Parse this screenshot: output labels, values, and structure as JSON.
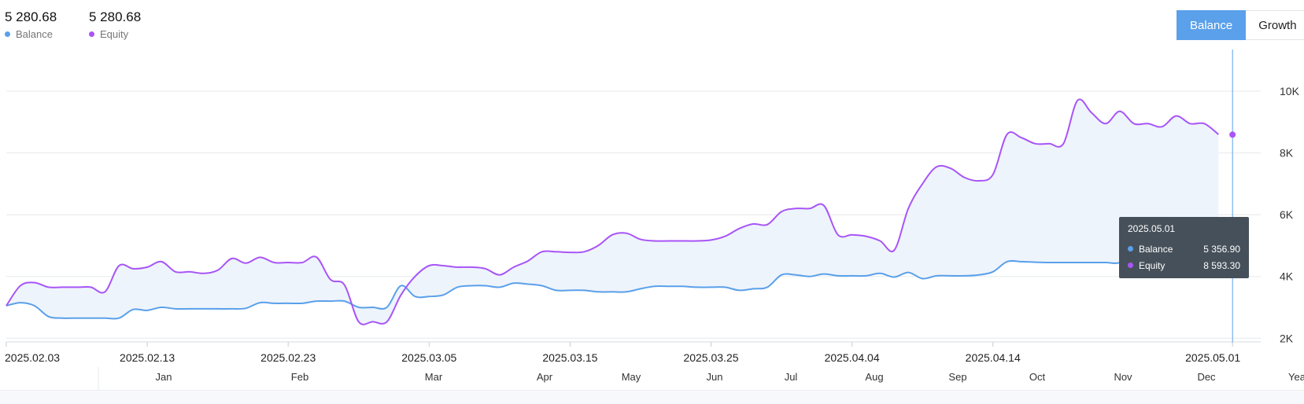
{
  "header": {
    "balance_value": "5 280.68",
    "balance_label": "Balance",
    "equity_value": "5 280.68",
    "equity_label": "Equity"
  },
  "toggle": {
    "balance_label": "Balance",
    "growth_label": "Growth"
  },
  "colors": {
    "balance": "#5aa0ea",
    "equity": "#a855f7",
    "fill": "#eef4fb",
    "tooltip_bg": "#46505a"
  },
  "tooltip": {
    "date": "2025.05.01",
    "balance_label": "Balance",
    "balance_value": "5 356.90",
    "equity_label": "Equity",
    "equity_value": "8 593.30"
  },
  "month_labels": [
    "Jan",
    "Feb",
    "Mar",
    "Apr",
    "May",
    "Jun",
    "Jul",
    "Aug",
    "Sep",
    "Oct",
    "Nov",
    "Dec",
    "Yea"
  ],
  "chart_data": {
    "type": "line",
    "x_start": "2025.02.03",
    "x_end": "2025.05.03",
    "x_ticks": [
      "2025.02.03",
      "2025.02.13",
      "2025.02.23",
      "2025.03.05",
      "2025.03.15",
      "2025.03.25",
      "2025.04.04",
      "2025.04.14",
      "2025.05.01"
    ],
    "y_ticks": [
      2000,
      4000,
      6000,
      8000,
      10000
    ],
    "y_tick_labels": [
      "2K",
      "4K",
      "6K",
      "8K",
      "10K"
    ],
    "ylim": [
      1930,
      11300
    ],
    "grid": true,
    "legend": "top-left",
    "series": [
      {
        "name": "Equity",
        "points": [
          [
            "2025.02.03",
            3050
          ],
          [
            "2025.02.04",
            3700
          ],
          [
            "2025.02.05",
            3800
          ],
          [
            "2025.02.06",
            3650
          ],
          [
            "2025.02.07",
            3650
          ],
          [
            "2025.02.08",
            3650
          ],
          [
            "2025.02.09",
            3650
          ],
          [
            "2025.02.10",
            3500
          ],
          [
            "2025.02.11",
            4350
          ],
          [
            "2025.02.12",
            4250
          ],
          [
            "2025.02.13",
            4300
          ],
          [
            "2025.02.14",
            4480
          ],
          [
            "2025.02.15",
            4150
          ],
          [
            "2025.02.16",
            4150
          ],
          [
            "2025.02.17",
            4100
          ],
          [
            "2025.02.18",
            4200
          ],
          [
            "2025.02.19",
            4580
          ],
          [
            "2025.02.20",
            4430
          ],
          [
            "2025.02.21",
            4620
          ],
          [
            "2025.02.22",
            4450
          ],
          [
            "2025.02.23",
            4450
          ],
          [
            "2025.02.24",
            4450
          ],
          [
            "2025.02.25",
            4630
          ],
          [
            "2025.02.26",
            3900
          ],
          [
            "2025.02.27",
            3720
          ],
          [
            "2025.02.28",
            2530
          ],
          [
            "2025.03.01",
            2530
          ],
          [
            "2025.03.02",
            2530
          ],
          [
            "2025.03.03",
            3400
          ],
          [
            "2025.03.04",
            4000
          ],
          [
            "2025.03.05",
            4350
          ],
          [
            "2025.03.06",
            4350
          ],
          [
            "2025.03.07",
            4300
          ],
          [
            "2025.03.08",
            4300
          ],
          [
            "2025.03.09",
            4250
          ],
          [
            "2025.03.10",
            4050
          ],
          [
            "2025.03.11",
            4300
          ],
          [
            "2025.03.12",
            4500
          ],
          [
            "2025.03.13",
            4800
          ],
          [
            "2025.03.14",
            4800
          ],
          [
            "2025.03.15",
            4780
          ],
          [
            "2025.03.16",
            4800
          ],
          [
            "2025.03.17",
            5000
          ],
          [
            "2025.03.18",
            5350
          ],
          [
            "2025.03.19",
            5400
          ],
          [
            "2025.03.20",
            5200
          ],
          [
            "2025.03.21",
            5150
          ],
          [
            "2025.03.22",
            5150
          ],
          [
            "2025.03.23",
            5150
          ],
          [
            "2025.03.24",
            5150
          ],
          [
            "2025.03.25",
            5180
          ],
          [
            "2025.03.26",
            5300
          ],
          [
            "2025.03.27",
            5550
          ],
          [
            "2025.03.28",
            5700
          ],
          [
            "2025.03.29",
            5680
          ],
          [
            "2025.03.30",
            6100
          ],
          [
            "2025.03.31",
            6200
          ],
          [
            "2025.04.01",
            6200
          ],
          [
            "2025.04.02",
            6300
          ],
          [
            "2025.04.03",
            5350
          ],
          [
            "2025.04.04",
            5350
          ],
          [
            "2025.04.05",
            5300
          ],
          [
            "2025.04.06",
            5150
          ],
          [
            "2025.04.07",
            4850
          ],
          [
            "2025.04.08",
            6200
          ],
          [
            "2025.04.09",
            7000
          ],
          [
            "2025.04.10",
            7550
          ],
          [
            "2025.04.11",
            7500
          ],
          [
            "2025.04.12",
            7200
          ],
          [
            "2025.04.13",
            7100
          ],
          [
            "2025.04.14",
            7300
          ],
          [
            "2025.04.15",
            8600
          ],
          [
            "2025.04.16",
            8500
          ],
          [
            "2025.04.17",
            8300
          ],
          [
            "2025.04.18",
            8300
          ],
          [
            "2025.04.19",
            8300
          ],
          [
            "2025.04.20",
            9700
          ],
          [
            "2025.04.21",
            9300
          ],
          [
            "2025.04.22",
            8950
          ],
          [
            "2025.04.23",
            9350
          ],
          [
            "2025.04.24",
            8950
          ],
          [
            "2025.04.25",
            8950
          ],
          [
            "2025.04.26",
            8850
          ],
          [
            "2025.04.27",
            9200
          ],
          [
            "2025.04.28",
            8950
          ],
          [
            "2025.04.29",
            8950
          ],
          [
            "2025.04.30",
            8600
          ]
        ]
      },
      {
        "name": "Balance",
        "points": [
          [
            "2025.02.03",
            3050
          ],
          [
            "2025.02.04",
            3150
          ],
          [
            "2025.02.05",
            3050
          ],
          [
            "2025.02.06",
            2700
          ],
          [
            "2025.02.07",
            2650
          ],
          [
            "2025.02.08",
            2650
          ],
          [
            "2025.02.09",
            2650
          ],
          [
            "2025.02.10",
            2650
          ],
          [
            "2025.02.11",
            2650
          ],
          [
            "2025.02.12",
            2930
          ],
          [
            "2025.02.13",
            2900
          ],
          [
            "2025.02.14",
            3000
          ],
          [
            "2025.02.15",
            2950
          ],
          [
            "2025.02.16",
            2950
          ],
          [
            "2025.02.17",
            2950
          ],
          [
            "2025.02.18",
            2950
          ],
          [
            "2025.02.19",
            2950
          ],
          [
            "2025.02.20",
            2970
          ],
          [
            "2025.02.21",
            3150
          ],
          [
            "2025.02.22",
            3130
          ],
          [
            "2025.02.23",
            3130
          ],
          [
            "2025.02.24",
            3130
          ],
          [
            "2025.02.25",
            3200
          ],
          [
            "2025.02.26",
            3200
          ],
          [
            "2025.02.27",
            3200
          ],
          [
            "2025.02.28",
            3000
          ],
          [
            "2025.03.01",
            3000
          ],
          [
            "2025.03.02",
            3000
          ],
          [
            "2025.03.03",
            3700
          ],
          [
            "2025.03.04",
            3350
          ],
          [
            "2025.03.05",
            3350
          ],
          [
            "2025.03.06",
            3400
          ],
          [
            "2025.03.07",
            3650
          ],
          [
            "2025.03.08",
            3700
          ],
          [
            "2025.03.09",
            3700
          ],
          [
            "2025.03.10",
            3650
          ],
          [
            "2025.03.11",
            3780
          ],
          [
            "2025.03.12",
            3750
          ],
          [
            "2025.03.13",
            3700
          ],
          [
            "2025.03.14",
            3550
          ],
          [
            "2025.03.15",
            3550
          ],
          [
            "2025.03.16",
            3550
          ],
          [
            "2025.03.17",
            3500
          ],
          [
            "2025.03.18",
            3500
          ],
          [
            "2025.03.19",
            3500
          ],
          [
            "2025.03.20",
            3600
          ],
          [
            "2025.03.21",
            3680
          ],
          [
            "2025.03.22",
            3680
          ],
          [
            "2025.03.23",
            3680
          ],
          [
            "2025.03.24",
            3650
          ],
          [
            "2025.03.25",
            3650
          ],
          [
            "2025.03.26",
            3650
          ],
          [
            "2025.03.27",
            3550
          ],
          [
            "2025.03.28",
            3600
          ],
          [
            "2025.03.29",
            3650
          ],
          [
            "2025.03.30",
            4050
          ],
          [
            "2025.03.31",
            4050
          ],
          [
            "2025.04.01",
            4000
          ],
          [
            "2025.04.02",
            4080
          ],
          [
            "2025.04.03",
            4020
          ],
          [
            "2025.04.04",
            4020
          ],
          [
            "2025.04.05",
            4020
          ],
          [
            "2025.04.06",
            4100
          ],
          [
            "2025.04.07",
            3980
          ],
          [
            "2025.04.08",
            4130
          ],
          [
            "2025.04.09",
            3930
          ],
          [
            "2025.04.10",
            4020
          ],
          [
            "2025.04.11",
            4020
          ],
          [
            "2025.04.12",
            4020
          ],
          [
            "2025.04.13",
            4050
          ],
          [
            "2025.04.14",
            4150
          ],
          [
            "2025.04.15",
            4480
          ],
          [
            "2025.04.16",
            4480
          ],
          [
            "2025.04.17",
            4460
          ],
          [
            "2025.04.18",
            4450
          ],
          [
            "2025.04.19",
            4450
          ],
          [
            "2025.04.20",
            4450
          ],
          [
            "2025.04.21",
            4450
          ],
          [
            "2025.04.22",
            4450
          ],
          [
            "2025.04.23",
            4450
          ],
          [
            "2025.04.24",
            4800
          ],
          [
            "2025.04.25",
            4950
          ],
          [
            "2025.04.26",
            5050
          ],
          [
            "2025.04.27",
            5150
          ],
          [
            "2025.04.28",
            5250
          ],
          [
            "2025.04.29",
            5330
          ],
          [
            "2025.04.30",
            5357
          ]
        ]
      }
    ],
    "crosshair_date": "2025.05.01",
    "crosshair_values": {
      "Balance": 5356.9,
      "Equity": 8593.3
    }
  }
}
